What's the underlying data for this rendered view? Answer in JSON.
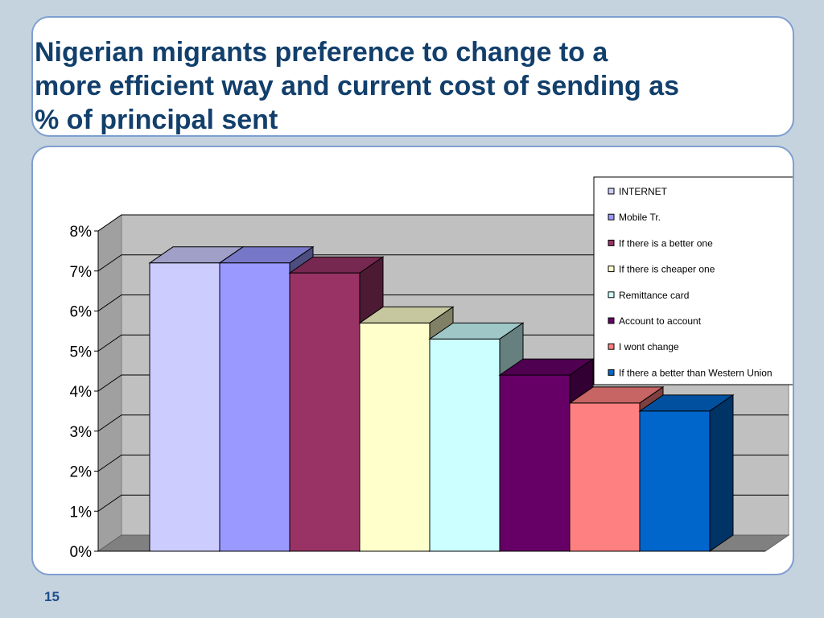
{
  "slide": {
    "title": "Nigerian migrants preference to change to a\nmore efficient way and current cost of sending as\n% of principal sent",
    "number": "15"
  },
  "chart_data": {
    "type": "bar",
    "style": "3d-clustered",
    "title": "",
    "xlabel": "",
    "ylabel": "",
    "ylim": [
      0,
      8
    ],
    "y_tick_labels": [
      "0%",
      "1%",
      "2%",
      "3%",
      "4%",
      "5%",
      "6%",
      "7%",
      "8%"
    ],
    "grid": true,
    "legend_position": "top-right",
    "series": [
      {
        "name": "INTERNET",
        "values": [
          7.2
        ],
        "color": "#ccccff"
      },
      {
        "name": "Mobile Tr.",
        "values": [
          7.2
        ],
        "color": "#9999ff"
      },
      {
        "name": "If there is a better one",
        "values": [
          6.95
        ],
        "color": "#993366"
      },
      {
        "name": "If there is cheaper one",
        "values": [
          5.7
        ],
        "color": "#ffffcc"
      },
      {
        "name": "Remittance card",
        "values": [
          5.3
        ],
        "color": "#ccffff"
      },
      {
        "name": "Account to account",
        "values": [
          4.4
        ],
        "color": "#660066"
      },
      {
        "name": "I wont change",
        "values": [
          3.7
        ],
        "color": "#ff8080"
      },
      {
        "name": "If there a better than Western Union",
        "values": [
          3.5
        ],
        "color": "#0066cc"
      }
    ]
  }
}
